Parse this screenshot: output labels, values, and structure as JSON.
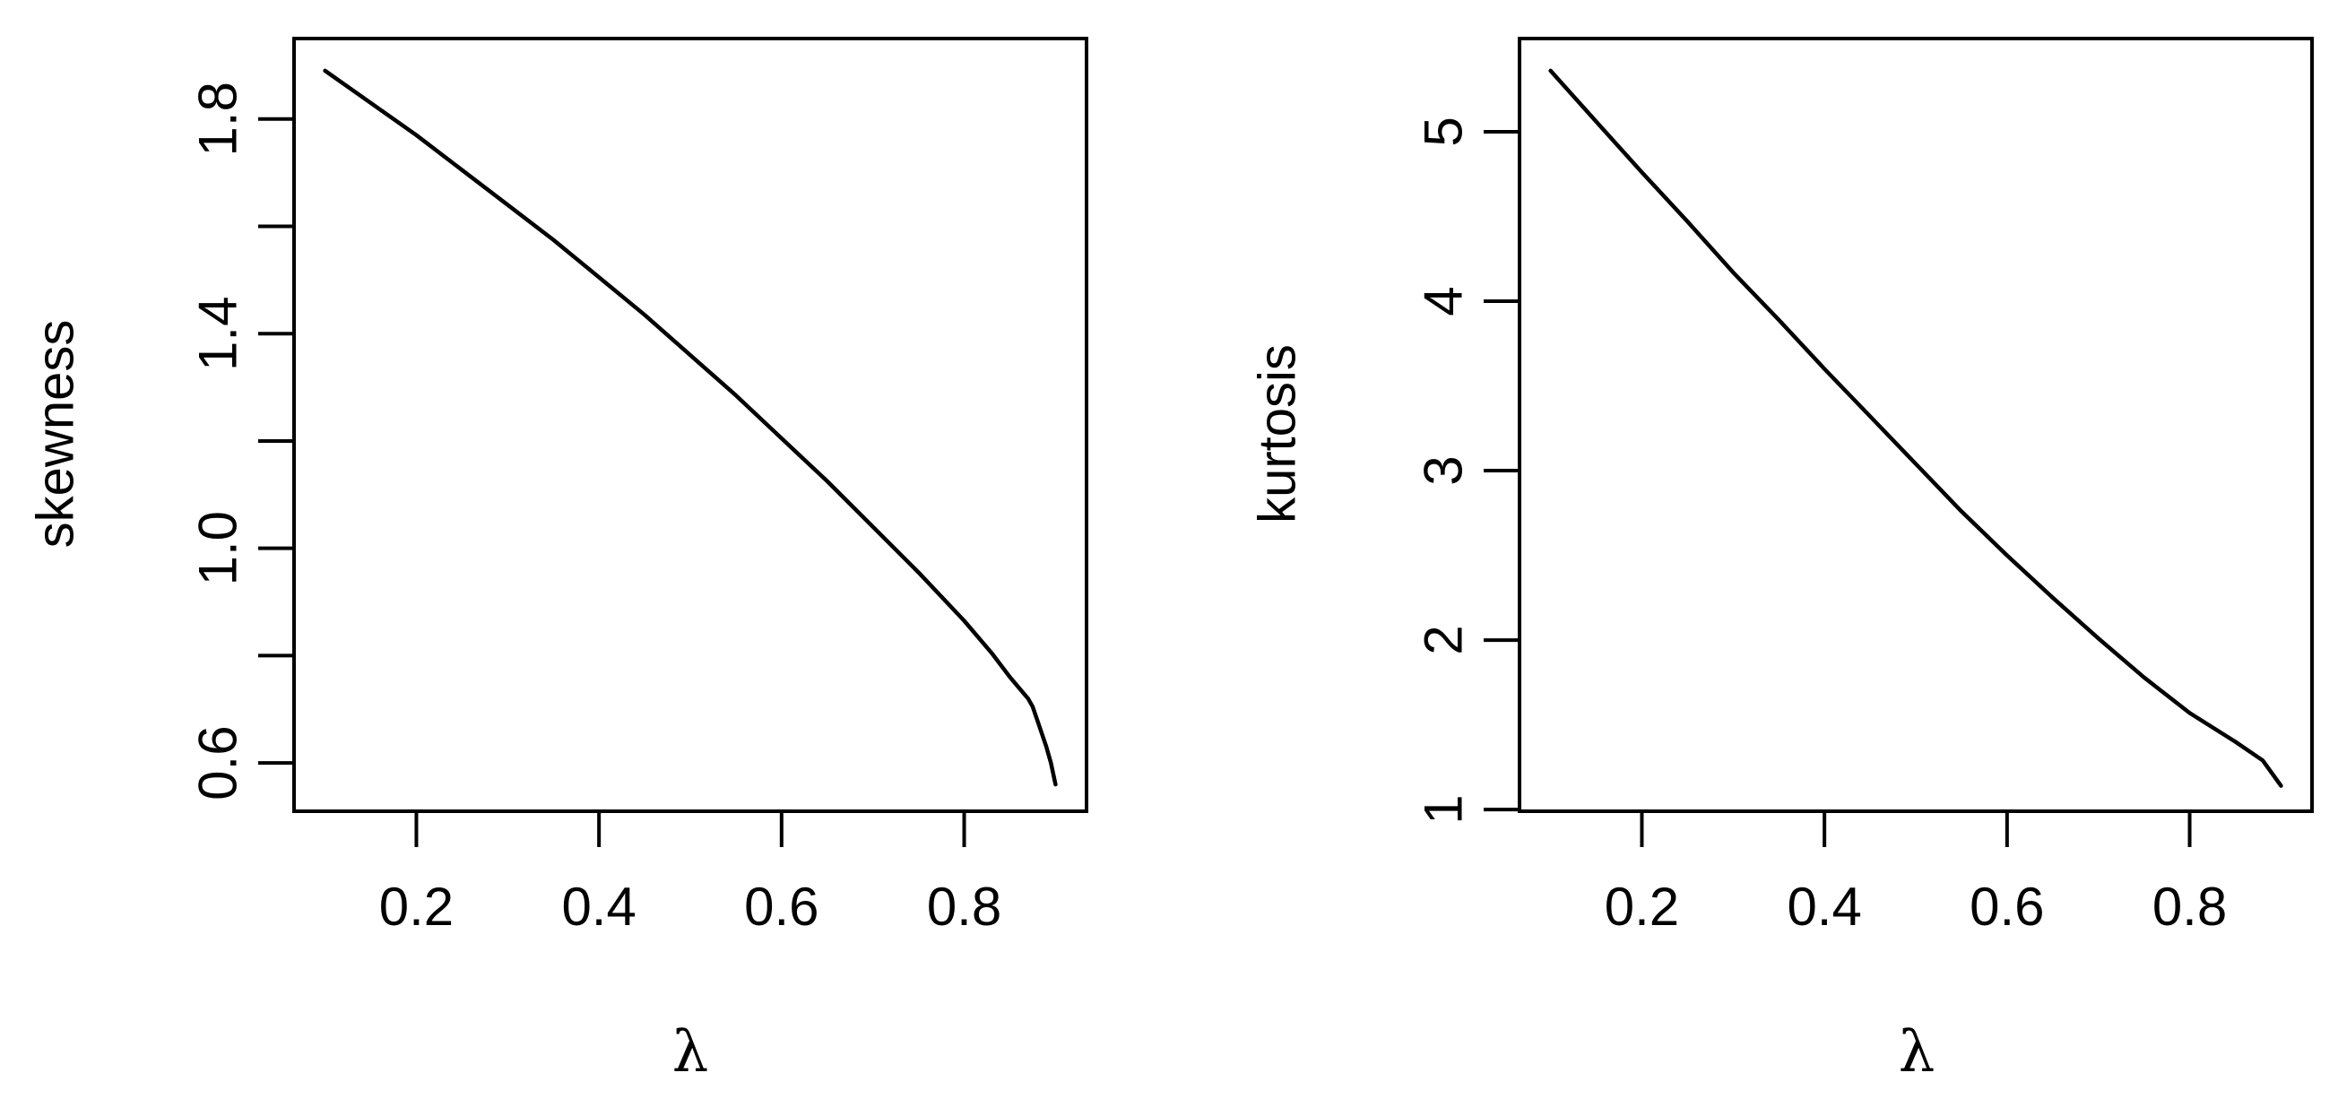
{
  "chart_data": [
    {
      "type": "line",
      "panel": "left",
      "xlabel": "λ",
      "ylabel": "skewness",
      "xlim": [
        0.066,
        0.934
      ],
      "ylim": [
        0.51,
        1.95
      ],
      "xticks": [
        0.2,
        0.4,
        0.6,
        0.8
      ],
      "xtick_labels": [
        "0.2",
        "0.4",
        "0.6",
        "0.8"
      ],
      "yticks": [
        0.6,
        0.8,
        1.0,
        1.2,
        1.4,
        1.6,
        1.8
      ],
      "ytick_labels": [
        "0.6",
        "",
        "1.0",
        "",
        "1.4",
        "",
        "1.8"
      ],
      "grid": false,
      "legend": "none",
      "series": [
        {
          "x": [
            0.1,
            0.15,
            0.2,
            0.25,
            0.3,
            0.35,
            0.4,
            0.45,
            0.5,
            0.55,
            0.6,
            0.65,
            0.7,
            0.75,
            0.8,
            0.83,
            0.85,
            0.86,
            0.87,
            0.875,
            0.88,
            0.885,
            0.89,
            0.895,
            0.9
          ],
          "y": [
            1.89,
            1.83,
            1.77,
            1.705,
            1.64,
            1.575,
            1.505,
            1.435,
            1.36,
            1.285,
            1.205,
            1.125,
            1.04,
            0.955,
            0.865,
            0.805,
            0.76,
            0.74,
            0.72,
            0.705,
            0.68,
            0.655,
            0.63,
            0.6,
            0.56
          ],
          "color": "#000000"
        }
      ]
    },
    {
      "type": "line",
      "panel": "right",
      "xlabel": "λ",
      "ylabel": "kurtosis",
      "xlim": [
        0.066,
        0.934
      ],
      "ylim": [
        0.99,
        5.55
      ],
      "xticks": [
        0.2,
        0.4,
        0.6,
        0.8
      ],
      "xtick_labels": [
        "0.2",
        "0.4",
        "0.6",
        "0.8"
      ],
      "yticks": [
        1,
        2,
        3,
        4,
        5
      ],
      "ytick_labels": [
        "1",
        "2",
        "3",
        "4",
        "5"
      ],
      "grid": false,
      "legend": "none",
      "series": [
        {
          "x": [
            0.1,
            0.15,
            0.2,
            0.25,
            0.3,
            0.35,
            0.4,
            0.45,
            0.5,
            0.55,
            0.6,
            0.65,
            0.7,
            0.75,
            0.8,
            0.85,
            0.88,
            0.9
          ],
          "y": [
            5.36,
            5.06,
            4.76,
            4.47,
            4.17,
            3.89,
            3.6,
            3.32,
            3.04,
            2.76,
            2.5,
            2.25,
            2.01,
            1.78,
            1.57,
            1.4,
            1.29,
            1.14
          ],
          "color": "#000000"
        }
      ]
    }
  ]
}
